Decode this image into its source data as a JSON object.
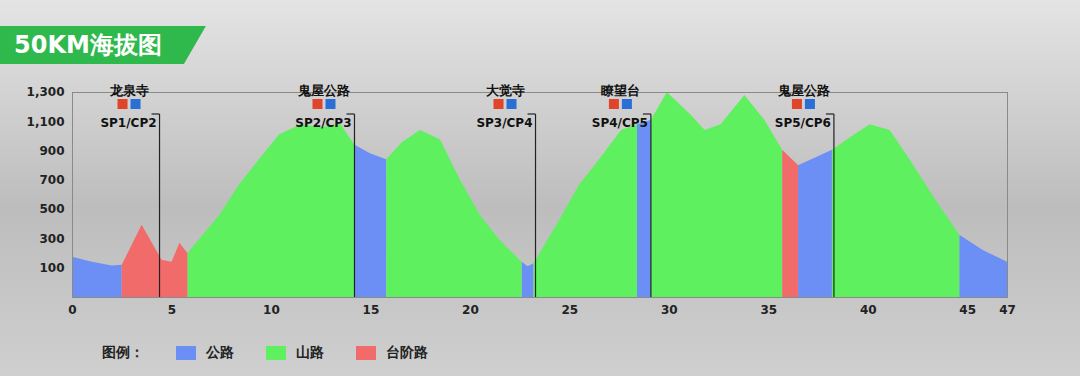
{
  "chart_data": {
    "type": "area",
    "title": "50KM海拔图",
    "x": [
      0,
      1,
      2,
      2.5,
      3.5,
      4.5,
      5,
      5.4,
      5.8,
      7.4,
      8.4,
      9.4,
      10.4,
      11.5,
      12.5,
      13.5,
      14.2,
      15,
      15.8,
      16.6,
      17.5,
      18.5,
      19.5,
      20.5,
      21.5,
      22.6,
      22.9,
      23.2,
      24.5,
      25.5,
      26.5,
      27.6,
      28.4,
      29.1,
      29.9,
      31.1,
      31.8,
      32.6,
      33.8,
      34.8,
      35.7,
      36.5,
      38.2,
      39.2,
      40.1,
      41.1,
      42.1,
      43.4,
      44.6,
      45.8,
      47
    ],
    "values": [
      175,
      140,
      115,
      120,
      394,
      155,
      140,
      270,
      200,
      460,
      670,
      840,
      1010,
      1080,
      1060,
      1080,
      940,
      880,
      840,
      960,
      1040,
      975,
      700,
      460,
      290,
      140,
      110,
      130,
      430,
      670,
      840,
      1040,
      1080,
      1110,
      1300,
      1145,
      1040,
      1080,
      1280,
      1110,
      905,
      800,
      905,
      1000,
      1080,
      1040,
      840,
      565,
      325,
      220,
      140
    ],
    "series": [
      {
        "name": "公路",
        "color": "#6b8ff5",
        "ranges": [
          [
            0,
            2.5
          ],
          [
            14.2,
            15.8
          ],
          [
            22.6,
            23.2
          ],
          [
            28.4,
            29.1
          ],
          [
            36.5,
            38.2
          ],
          [
            44.6,
            47
          ]
        ]
      },
      {
        "name": "山路",
        "color": "#5ff05f",
        "ranges": [
          [
            5.8,
            14.2
          ],
          [
            15.8,
            22.6
          ],
          [
            23.2,
            28.4
          ],
          [
            29.1,
            35.7
          ],
          [
            38.2,
            44.6
          ]
        ]
      },
      {
        "name": "台阶路",
        "color": "#f26b6b",
        "ranges": [
          [
            2.5,
            5.8
          ],
          [
            35.7,
            36.5
          ]
        ]
      }
    ],
    "legend_title": "图例：",
    "annotations": [
      {
        "x": 4.4,
        "text": "龙泉寺",
        "label": "SP1/CP2"
      },
      {
        "x": 14.2,
        "text": "鬼屋公路",
        "label": "SP2/CP3"
      },
      {
        "x": 23.3,
        "text": "大觉寺",
        "label": "SP3/CP4"
      },
      {
        "x": 29.1,
        "text": "瞭望台",
        "label": "SP4/CP5"
      },
      {
        "x": 38.3,
        "text": "鬼屋公路",
        "label": "SP5/CP6"
      }
    ],
    "xlim": [
      0,
      47
    ],
    "ylim": [
      -100,
      1300
    ],
    "xticks": [
      0,
      5,
      10,
      15,
      20,
      25,
      30,
      35,
      40,
      45,
      47
    ],
    "yticks": [
      100,
      300,
      500,
      700,
      900,
      1100,
      1300
    ],
    "grid": false,
    "legend": "bottom"
  }
}
